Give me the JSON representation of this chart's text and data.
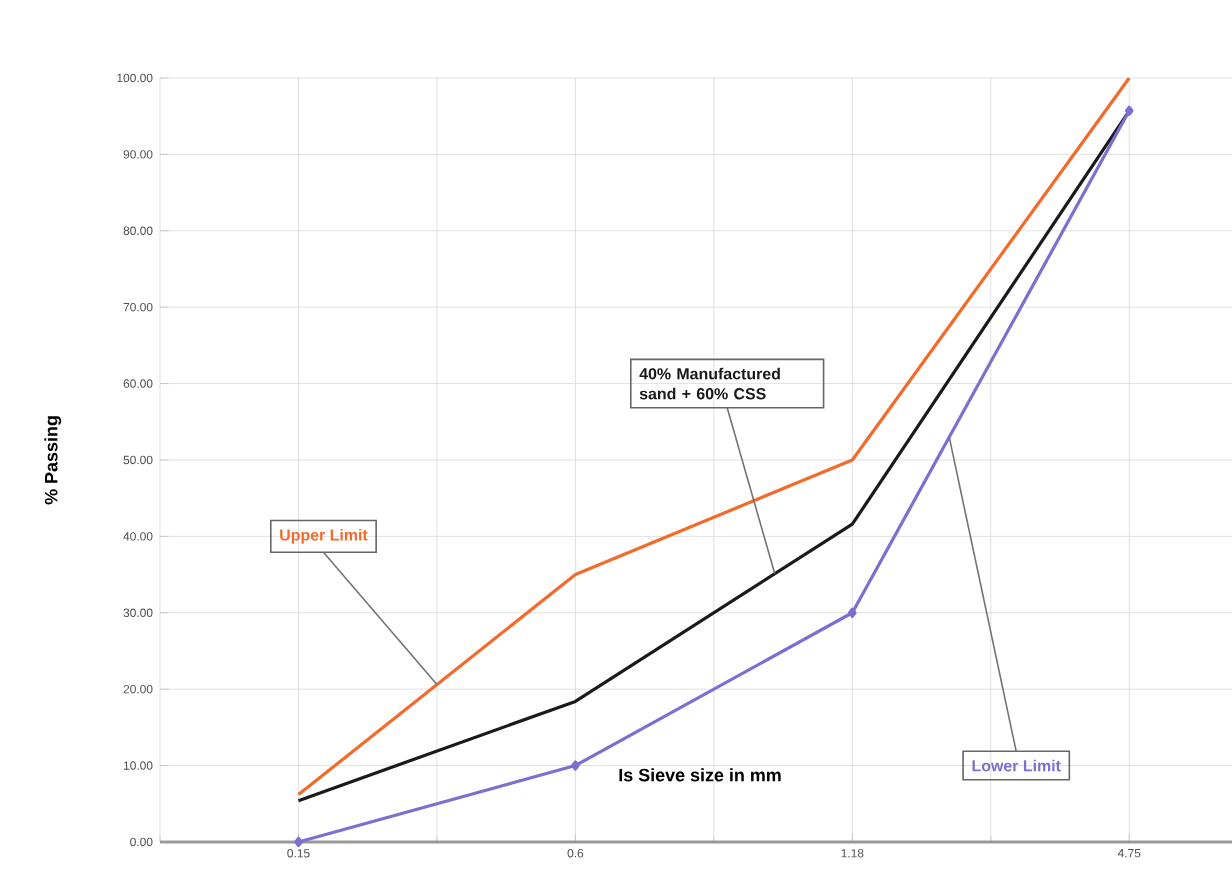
{
  "chart_data": {
    "type": "line",
    "xlabel": "Is Sieve size in mm",
    "ylabel": "% Passing",
    "categories": [
      "0.15",
      "0.6",
      "1.18",
      "4.75"
    ],
    "series": [
      {
        "name": "Upper Limit",
        "color": "#f26b2a",
        "values": [
          6.2,
          35,
          50,
          100
        ]
      },
      {
        "name": "40% Manufactured sand + 60% CSS",
        "color": "#1a1a1a",
        "values": [
          5.4,
          18.4,
          41.6,
          95.7
        ]
      },
      {
        "name": "Lower  Limit",
        "color": "#7b6fd0",
        "values": [
          0,
          10,
          30,
          95.7
        ],
        "marker": "diamond"
      }
    ],
    "ylim": [
      0,
      100
    ],
    "yticks": [
      {
        "value": 0,
        "label": "0.00"
      },
      {
        "value": 10,
        "label": "10.00"
      },
      {
        "value": 20,
        "label": "20.00"
      },
      {
        "value": 30,
        "label": "30.00"
      },
      {
        "value": 40,
        "label": "40.00"
      },
      {
        "value": 50,
        "label": "50.00"
      },
      {
        "value": 60,
        "label": "60.00"
      },
      {
        "value": 70,
        "label": "70.00"
      },
      {
        "value": 80,
        "label": "80.00"
      },
      {
        "value": 90,
        "label": "90.00"
      },
      {
        "value": 100,
        "label": "100.00"
      }
    ],
    "grid": true,
    "legend": false
  }
}
